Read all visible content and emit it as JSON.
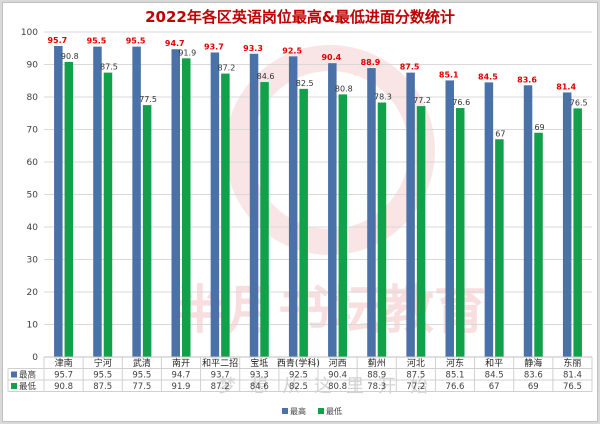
{
  "chart_data": {
    "type": "bar",
    "title": "2022年各区英语岗位最高&最低进面分数统计",
    "categories": [
      "津南",
      "宁河",
      "武清",
      "南开",
      "和平二招",
      "宝坻",
      "西青(学科)",
      "河西",
      "蓟州",
      "河北",
      "河东",
      "和平",
      "静海",
      "东丽"
    ],
    "series": [
      {
        "name": "最高",
        "color": "#4a72a8",
        "label_color": "#e00000",
        "values": [
          95.7,
          95.5,
          95.5,
          94.7,
          93.7,
          93.3,
          92.5,
          90.4,
          88.9,
          87.5,
          85.1,
          84.5,
          83.6,
          81.4
        ]
      },
      {
        "name": "最低",
        "color": "#12a04a",
        "label_color": "#333333",
        "values": [
          90.8,
          87.5,
          77.5,
          91.9,
          87.2,
          84.6,
          82.5,
          80.8,
          78.3,
          77.2,
          76.6,
          67,
          69,
          76.5
        ]
      }
    ],
    "ylim": [
      0,
      100
    ],
    "yticks": [
      0,
      10,
      20,
      30,
      40,
      50,
      60,
      70,
      80,
      90,
      100
    ],
    "grid": true,
    "legend": "bottom",
    "data_table": true
  },
  "watermark": {
    "main": "半月书坛教育",
    "sub": "梦想从这里开始"
  }
}
